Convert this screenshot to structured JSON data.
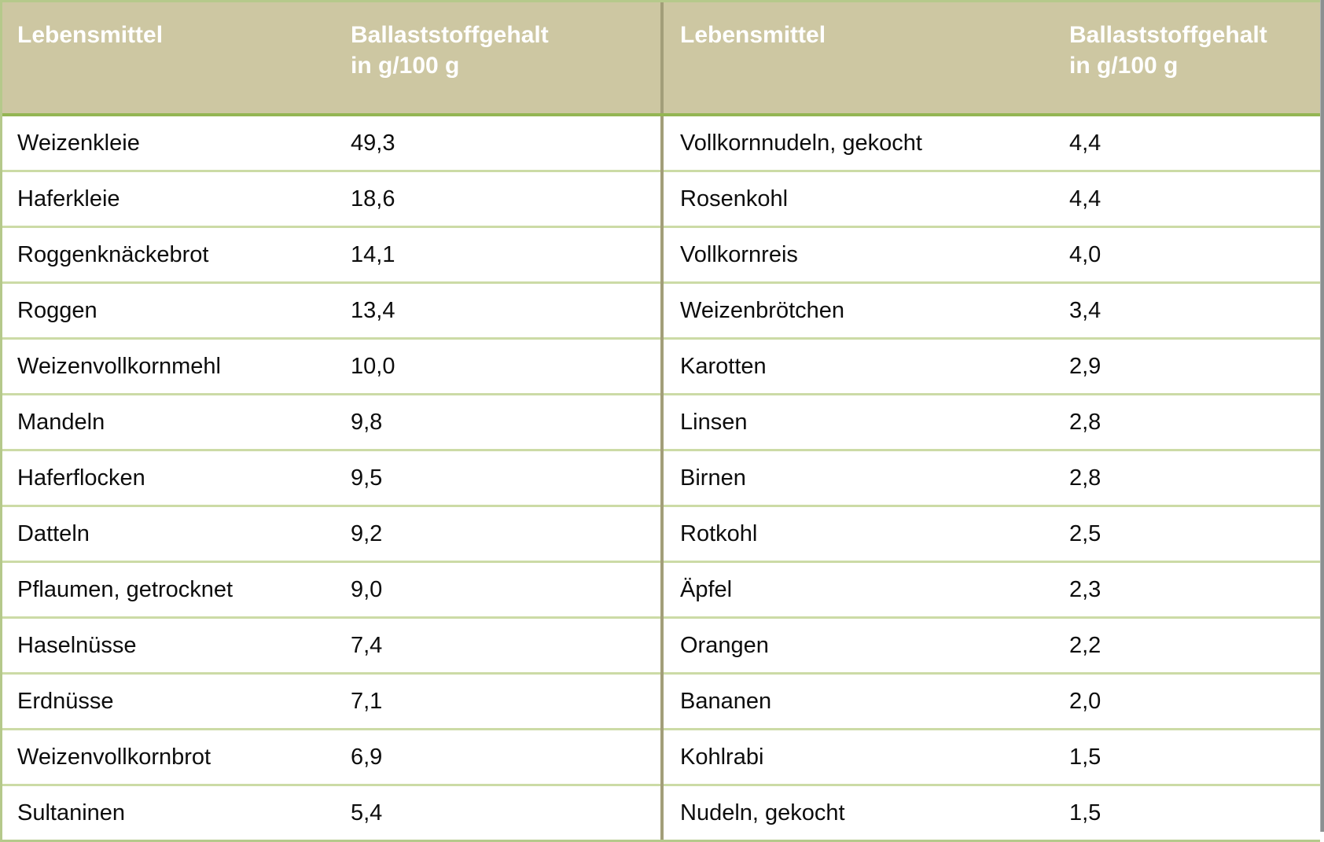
{
  "table": {
    "columns": {
      "food_label": "Lebensmittel",
      "fiber_label_line1": "Ballaststoffgehalt",
      "fiber_label_line2": "in g/100 g"
    },
    "left_rows": [
      {
        "food": "Weizenkleie",
        "value": "49,3"
      },
      {
        "food": "Haferkleie",
        "value": "18,6"
      },
      {
        "food": "Roggenknäckebrot",
        "value": "14,1"
      },
      {
        "food": "Roggen",
        "value": "13,4"
      },
      {
        "food": "Weizenvollkornmehl",
        "value": "10,0"
      },
      {
        "food": "Mandeln",
        "value": "9,8"
      },
      {
        "food": "Haferflocken",
        "value": "9,5"
      },
      {
        "food": "Datteln",
        "value": "9,2"
      },
      {
        "food": "Pflaumen, getrocknet",
        "value": "9,0"
      },
      {
        "food": "Haselnüsse",
        "value": "7,4"
      },
      {
        "food": "Erdnüsse",
        "value": "7,1"
      },
      {
        "food": "Weizenvollkornbrot",
        "value": "6,9"
      },
      {
        "food": "Sultaninen",
        "value": "5,4"
      }
    ],
    "right_rows": [
      {
        "food": "Vollkornnudeln, gekocht",
        "value": "4,4"
      },
      {
        "food": "Rosenkohl",
        "value": "4,4"
      },
      {
        "food": "Vollkornreis",
        "value": "4,0"
      },
      {
        "food": "Weizenbrötchen",
        "value": "3,4"
      },
      {
        "food": "Karotten",
        "value": "2,9"
      },
      {
        "food": "Linsen",
        "value": "2,8"
      },
      {
        "food": "Birnen",
        "value": "2,8"
      },
      {
        "food": "Rotkohl",
        "value": "2,5"
      },
      {
        "food": "Äpfel",
        "value": "2,3"
      },
      {
        "food": "Orangen",
        "value": "2,2"
      },
      {
        "food": "Bananen",
        "value": "2,0"
      },
      {
        "food": "Kohlrabi",
        "value": "1,5"
      },
      {
        "food": "Nudeln, gekocht",
        "value": "1,5"
      }
    ]
  },
  "colors": {
    "header_bg": "#cdc7a2",
    "header_text": "#ffffff",
    "header_border": "#94b553",
    "row_border": "#ccdba6",
    "outer_border": "#b5c98b",
    "divider": "#a29e79",
    "body_text": "#0d0d0d",
    "window_edge": "#8b9091"
  }
}
